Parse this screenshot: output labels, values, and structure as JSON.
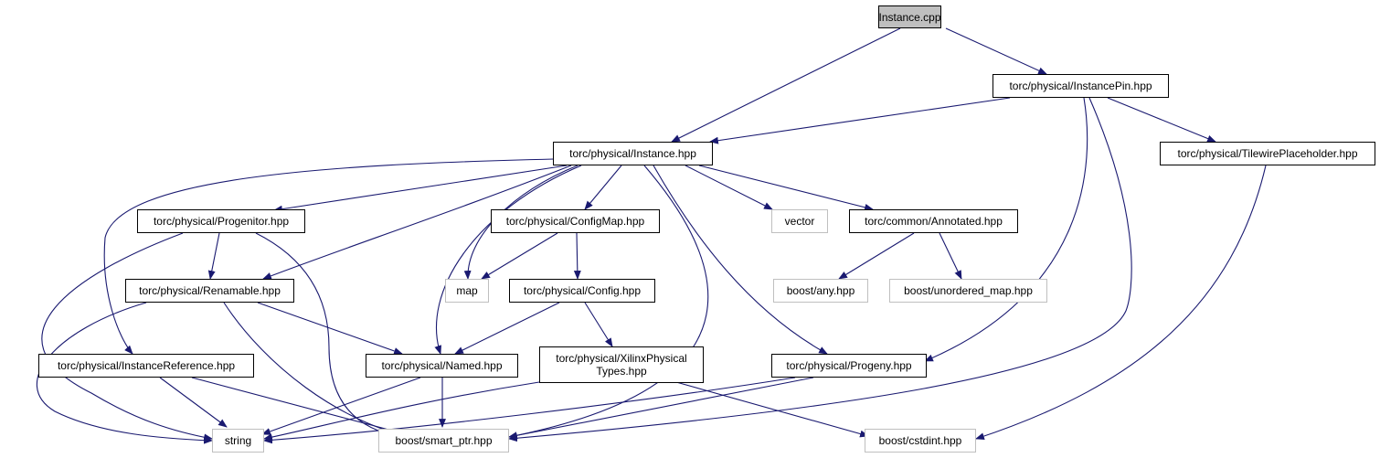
{
  "graph": {
    "edge_color": "#191970",
    "root_fill": "#bfbfbf",
    "system_header_border": "#bfbfbf",
    "nodes": {
      "instance_cpp": "Instance.cpp",
      "instancepin_hpp": "torc/physical/InstancePin.hpp",
      "instance_hpp": "torc/physical/Instance.hpp",
      "tilewireplaceholder_hpp": "torc/physical/TilewirePlaceholder.hpp",
      "progenitor_hpp": "torc/physical/Progenitor.hpp",
      "configmap_hpp": "torc/physical/ConfigMap.hpp",
      "vector": "vector",
      "annotated_hpp": "torc/common/Annotated.hpp",
      "renamable_hpp": "torc/physical/Renamable.hpp",
      "map": "map",
      "config_hpp": "torc/physical/Config.hpp",
      "boost_any_hpp": "boost/any.hpp",
      "boost_unordered_map_hpp": "boost/unordered_map.hpp",
      "instancereference_hpp": "torc/physical/InstanceReference.hpp",
      "named_hpp": "torc/physical/Named.hpp",
      "xilinxphysicaltypes_line1": "torc/physical/XilinxPhysical",
      "xilinxphysicaltypes_line2": "Types.hpp",
      "progeny_hpp": "torc/physical/Progeny.hpp",
      "string": "string",
      "boost_smart_ptr_hpp": "boost/smart_ptr.hpp",
      "boost_cstdint_hpp": "boost/cstdint.hpp"
    }
  }
}
